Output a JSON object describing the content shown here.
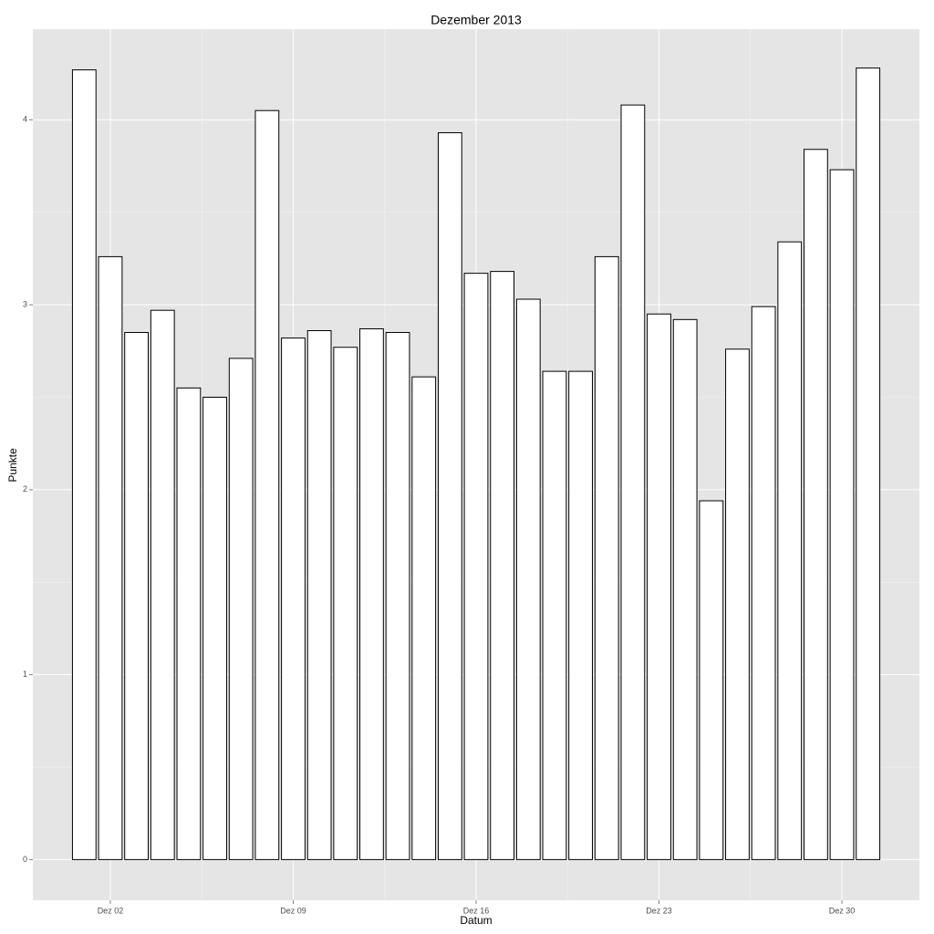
{
  "chart_data": {
    "type": "bar",
    "title": "Dezember 2013",
    "x_label": "Datum",
    "y_label": "Punkte",
    "categories": [
      null,
      "Dez 02",
      null,
      null,
      null,
      null,
      null,
      null,
      "Dez 09",
      null,
      null,
      null,
      null,
      null,
      null,
      "Dez 16",
      null,
      null,
      null,
      null,
      null,
      null,
      "Dez 23",
      null,
      null,
      null,
      null,
      null,
      null,
      "Dez 30",
      null
    ],
    "values": [
      4.27,
      3.26,
      2.85,
      2.97,
      2.55,
      2.5,
      2.71,
      4.05,
      2.82,
      2.86,
      2.77,
      2.87,
      2.85,
      2.61,
      3.93,
      3.17,
      3.18,
      3.03,
      2.64,
      2.64,
      3.26,
      4.08,
      2.95,
      2.92,
      1.94,
      2.76,
      2.99,
      3.34,
      3.84,
      3.73,
      4.28
    ],
    "color": "#ffffff",
    "edge_color": "#000000",
    "ylim": [
      -0.22,
      4.49
    ],
    "yticks": [
      0,
      1,
      2,
      3,
      4
    ],
    "grid": true
  }
}
